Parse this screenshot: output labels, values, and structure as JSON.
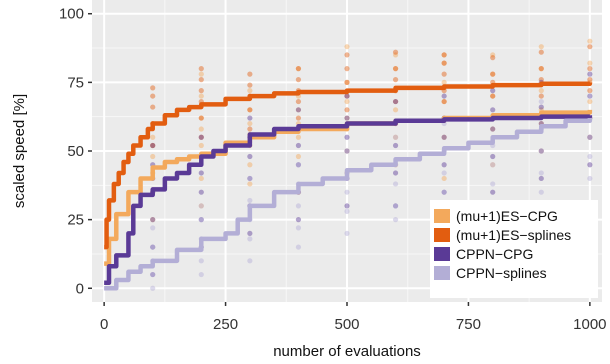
{
  "chart_data": {
    "type": "line",
    "xlabel": "number of evaluations",
    "ylabel": "scaled speed [%]",
    "xlim": [
      -25,
      1025
    ],
    "ylim": [
      -5,
      105
    ],
    "x_ticks": [
      0,
      250,
      500,
      750,
      1000
    ],
    "x_tick_labels": [
      "0",
      "250",
      "500",
      "750",
      "1000"
    ],
    "y_ticks": [
      0,
      25,
      50,
      75,
      100
    ],
    "y_tick_labels": [
      "0",
      "25",
      "50",
      "75",
      "100"
    ],
    "grid": true,
    "legend_position": "bottom-right",
    "scatter_x": [
      100,
      200,
      300,
      400,
      500,
      600,
      700,
      800,
      900,
      1000
    ],
    "series": [
      {
        "name": "(mu+1)ES−CPG",
        "color": "#f3a95c",
        "x": [
          0,
          10,
          25,
          50,
          75,
          100,
          125,
          150,
          175,
          200,
          250,
          300,
          350,
          400,
          500,
          600,
          700,
          800,
          900,
          1000
        ],
        "y": [
          9,
          18,
          27,
          35,
          40,
          44,
          46,
          47,
          48,
          49,
          53,
          55,
          57,
          58,
          60,
          61,
          62,
          63,
          64,
          65
        ],
        "scatter": [
          [
            25,
            35,
            42,
            48,
            52,
            55,
            60
          ],
          [
            30,
            40,
            48,
            52,
            58,
            62,
            70,
            78
          ],
          [
            38,
            45,
            52,
            56,
            60,
            65,
            72
          ],
          [
            35,
            48,
            55,
            60,
            65,
            70,
            80
          ],
          [
            42,
            50,
            58,
            62,
            68,
            75,
            88
          ],
          [
            45,
            55,
            60,
            65,
            72,
            80,
            85
          ],
          [
            40,
            55,
            62,
            68,
            75,
            82,
            85
          ],
          [
            45,
            58,
            62,
            70,
            78,
            85
          ],
          [
            50,
            60,
            65,
            72,
            80,
            88
          ],
          [
            55,
            62,
            68,
            75,
            82,
            90
          ]
        ]
      },
      {
        "name": "(mu+1)ES−splines",
        "color": "#e25d10",
        "x": [
          0,
          5,
          10,
          20,
          30,
          40,
          50,
          60,
          75,
          90,
          100,
          125,
          150,
          175,
          200,
          250,
          300,
          350,
          400,
          500,
          600,
          700,
          800,
          900,
          1000
        ],
        "y": [
          15,
          25,
          32,
          38,
          42,
          46,
          49,
          52,
          55,
          58,
          60,
          63,
          65,
          66,
          67,
          69,
          70,
          71,
          71.5,
          72,
          73,
          73.5,
          74,
          74.5,
          75
        ],
        "scatter": [
          [
            52,
            60,
            66,
            70,
            73
          ],
          [
            55,
            62,
            68,
            72,
            76,
            80
          ],
          [
            58,
            65,
            70,
            74,
            78
          ],
          [
            62,
            68,
            72,
            76,
            80
          ],
          [
            65,
            70,
            75,
            80,
            85
          ],
          [
            68,
            72,
            76,
            80,
            86
          ],
          [
            68,
            72,
            78,
            82,
            85
          ],
          [
            70,
            75,
            78,
            84
          ],
          [
            70,
            76,
            80,
            86
          ],
          [
            72,
            76,
            80,
            88
          ]
        ]
      },
      {
        "name": "CPPN−CPG",
        "color": "#5a3a96",
        "x": [
          0,
          10,
          25,
          50,
          60,
          75,
          100,
          125,
          150,
          175,
          200,
          225,
          250,
          300,
          350,
          400,
          500,
          600,
          700,
          800,
          900,
          1000
        ],
        "y": [
          2,
          8,
          12,
          20,
          30,
          34,
          36,
          40,
          42,
          45,
          48,
          50,
          52,
          56,
          58,
          59,
          60,
          61,
          61.5,
          62,
          62.5,
          63
        ],
        "scatter": [
          [
            5,
            15,
            25,
            35,
            40,
            45,
            52
          ],
          [
            15,
            25,
            35,
            42,
            48,
            55
          ],
          [
            20,
            30,
            40,
            48,
            55,
            62
          ],
          [
            25,
            35,
            45,
            52,
            58,
            65
          ],
          [
            30,
            40,
            50,
            55,
            62,
            70
          ],
          [
            30,
            42,
            52,
            60,
            68
          ],
          [
            35,
            45,
            55,
            62,
            70
          ],
          [
            35,
            48,
            58,
            65,
            72
          ],
          [
            40,
            50,
            60,
            66,
            75
          ],
          [
            45,
            55,
            62,
            70,
            78
          ]
        ]
      },
      {
        "name": "CPPN−splines",
        "color": "#b3aed6",
        "x": [
          0,
          25,
          50,
          75,
          100,
          150,
          200,
          250,
          275,
          300,
          350,
          400,
          450,
          500,
          550,
          600,
          650,
          700,
          750,
          800,
          850,
          900,
          950,
          1000
        ],
        "y": [
          0,
          3,
          6,
          8,
          10,
          14,
          18,
          20,
          25,
          30,
          35,
          38,
          40,
          43,
          45,
          47,
          49,
          51,
          53,
          55,
          57,
          59,
          61,
          62
        ],
        "scatter": [
          [
            0,
            5,
            10,
            15,
            22
          ],
          [
            5,
            10,
            18,
            25,
            30
          ],
          [
            10,
            18,
            25,
            32,
            40
          ],
          [
            15,
            22,
            30,
            38,
            45
          ],
          [
            20,
            28,
            35,
            42,
            50
          ],
          [
            25,
            30,
            38,
            45,
            55
          ],
          [
            25,
            35,
            42,
            50,
            60
          ],
          [
            30,
            38,
            45,
            52,
            62
          ],
          [
            35,
            42,
            50,
            58,
            68
          ],
          [
            40,
            48,
            55,
            62,
            70
          ]
        ]
      }
    ]
  }
}
